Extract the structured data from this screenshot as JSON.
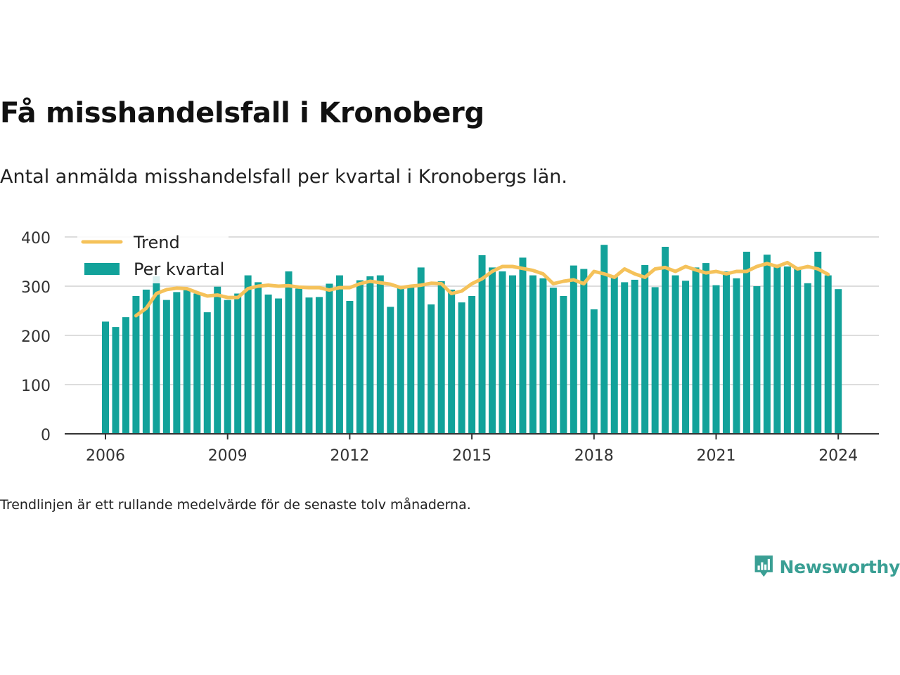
{
  "header": {
    "title": "Få misshandelsfall i Kronoberg",
    "subtitle": "Antal anmälda misshandelsfall per kvartal i Kronobergs län."
  },
  "footer": {
    "note": "Trendlinjen är ett rullande medelvärde för de senaste tolv månaderna.",
    "brand": "Newsworthy"
  },
  "colors": {
    "bars": "#12a29a",
    "trend": "#f5c25a",
    "grid": "#dddddd",
    "axis": "#333333",
    "brand": "#3a9f94"
  },
  "chart_data": {
    "type": "bar",
    "x_tick_labels": [
      "2006",
      "2009",
      "2012",
      "2015",
      "2018",
      "2021",
      "2024"
    ],
    "x_tick_years": [
      2006,
      2009,
      2012,
      2015,
      2018,
      2021,
      2024
    ],
    "y_ticks": [
      0,
      100,
      200,
      300,
      400
    ],
    "ylim": [
      0,
      400
    ],
    "grid": true,
    "legend_position": "top-left",
    "start_year": 2006,
    "series": [
      {
        "name": "Per kvartal",
        "kind": "bar",
        "values": [
          228,
          217,
          237,
          280,
          293,
          320,
          272,
          288,
          293,
          285,
          247,
          299,
          272,
          285,
          322,
          308,
          283,
          275,
          330,
          295,
          277,
          278,
          305,
          322,
          270,
          312,
          320,
          322,
          258,
          298,
          298,
          338,
          263,
          310,
          293,
          267,
          280,
          363,
          338,
          330,
          322,
          358,
          322,
          316,
          297,
          280,
          342,
          335,
          253,
          384,
          322,
          308,
          313,
          343,
          298,
          380,
          322,
          311,
          338,
          347,
          302,
          330,
          316,
          370,
          300,
          364,
          342,
          340,
          336,
          306,
          370,
          322,
          294
        ]
      },
      {
        "name": "Trend",
        "kind": "line",
        "start_index": 3,
        "values": [
          240,
          255,
          285,
          293,
          296,
          295,
          287,
          280,
          282,
          277,
          277,
          295,
          300,
          302,
          300,
          301,
          298,
          297,
          297,
          292,
          297,
          297,
          305,
          310,
          307,
          304,
          297,
          300,
          302,
          306,
          305,
          285,
          290,
          305,
          315,
          330,
          340,
          340,
          336,
          332,
          325,
          305,
          310,
          313,
          305,
          330,
          325,
          318,
          335,
          325,
          318,
          335,
          338,
          330,
          340,
          333,
          327,
          330,
          325,
          330,
          330,
          340,
          346,
          340,
          348,
          335,
          340,
          335,
          324
        ]
      }
    ]
  }
}
